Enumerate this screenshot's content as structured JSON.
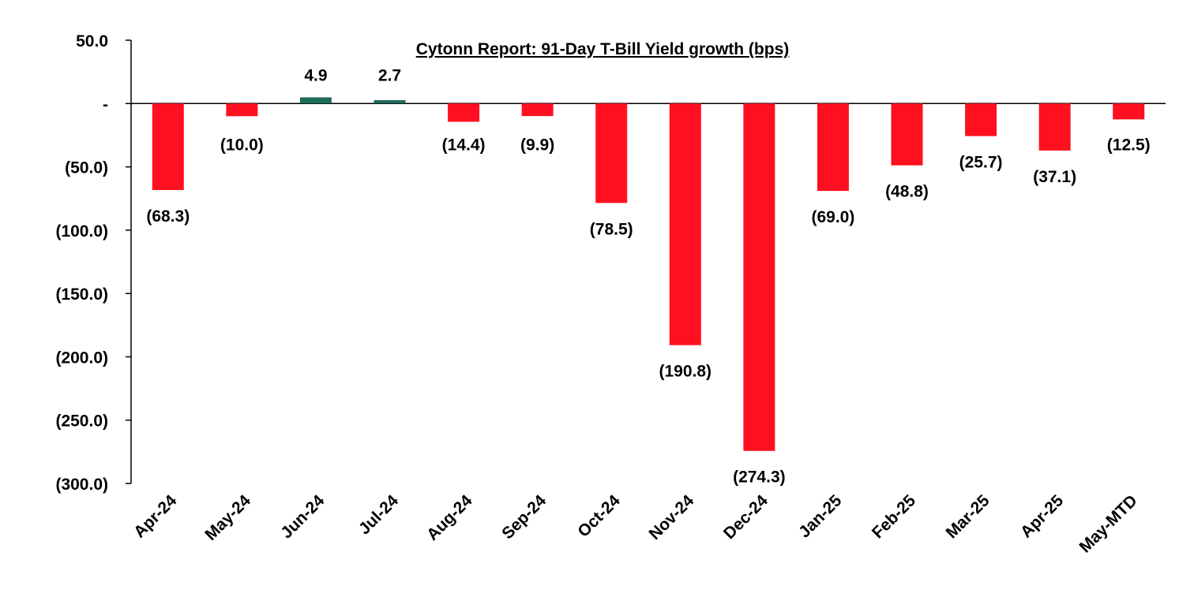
{
  "chart_data": {
    "type": "bar",
    "title": "Cytonn Report:  91-Day T-Bill Yield growth (bps)",
    "xlabel": "",
    "ylabel": "",
    "categories": [
      "Apr-24",
      "May-24",
      "Jun-24",
      "Jul-24",
      "Aug-24",
      "Sep-24",
      "Oct-24",
      "Nov-24",
      "Dec-24",
      "Jan-25",
      "Feb-25",
      "Mar-25",
      "Apr-25",
      "May-MTD"
    ],
    "values": [
      -68.3,
      -10.0,
      4.9,
      2.7,
      -14.4,
      -9.9,
      -78.5,
      -190.8,
      -274.3,
      -69.0,
      -48.8,
      -25.7,
      -37.1,
      -12.5
    ],
    "data_labels": [
      "(68.3)",
      "(10.0)",
      "4.9",
      "2.7",
      "(14.4)",
      "(9.9)",
      "(78.5)",
      "(190.8)",
      "(274.3)",
      "(69.0)",
      "(48.8)",
      "(25.7)",
      "(37.1)",
      "(12.5)"
    ],
    "ylim": [
      -300,
      50
    ],
    "yticks": [
      50,
      0,
      -50,
      -100,
      -150,
      -200,
      -250,
      -300
    ],
    "ytick_labels": [
      "50.0",
      "-",
      "(50.0)",
      "(100.0)",
      "(150.0)",
      "(200.0)",
      "(250.0)",
      "(300.0)"
    ],
    "grid": false,
    "legend": "none",
    "colors": {
      "negative": "#FF1020",
      "positive": "#1E6B5A",
      "axis": "#000000"
    }
  }
}
